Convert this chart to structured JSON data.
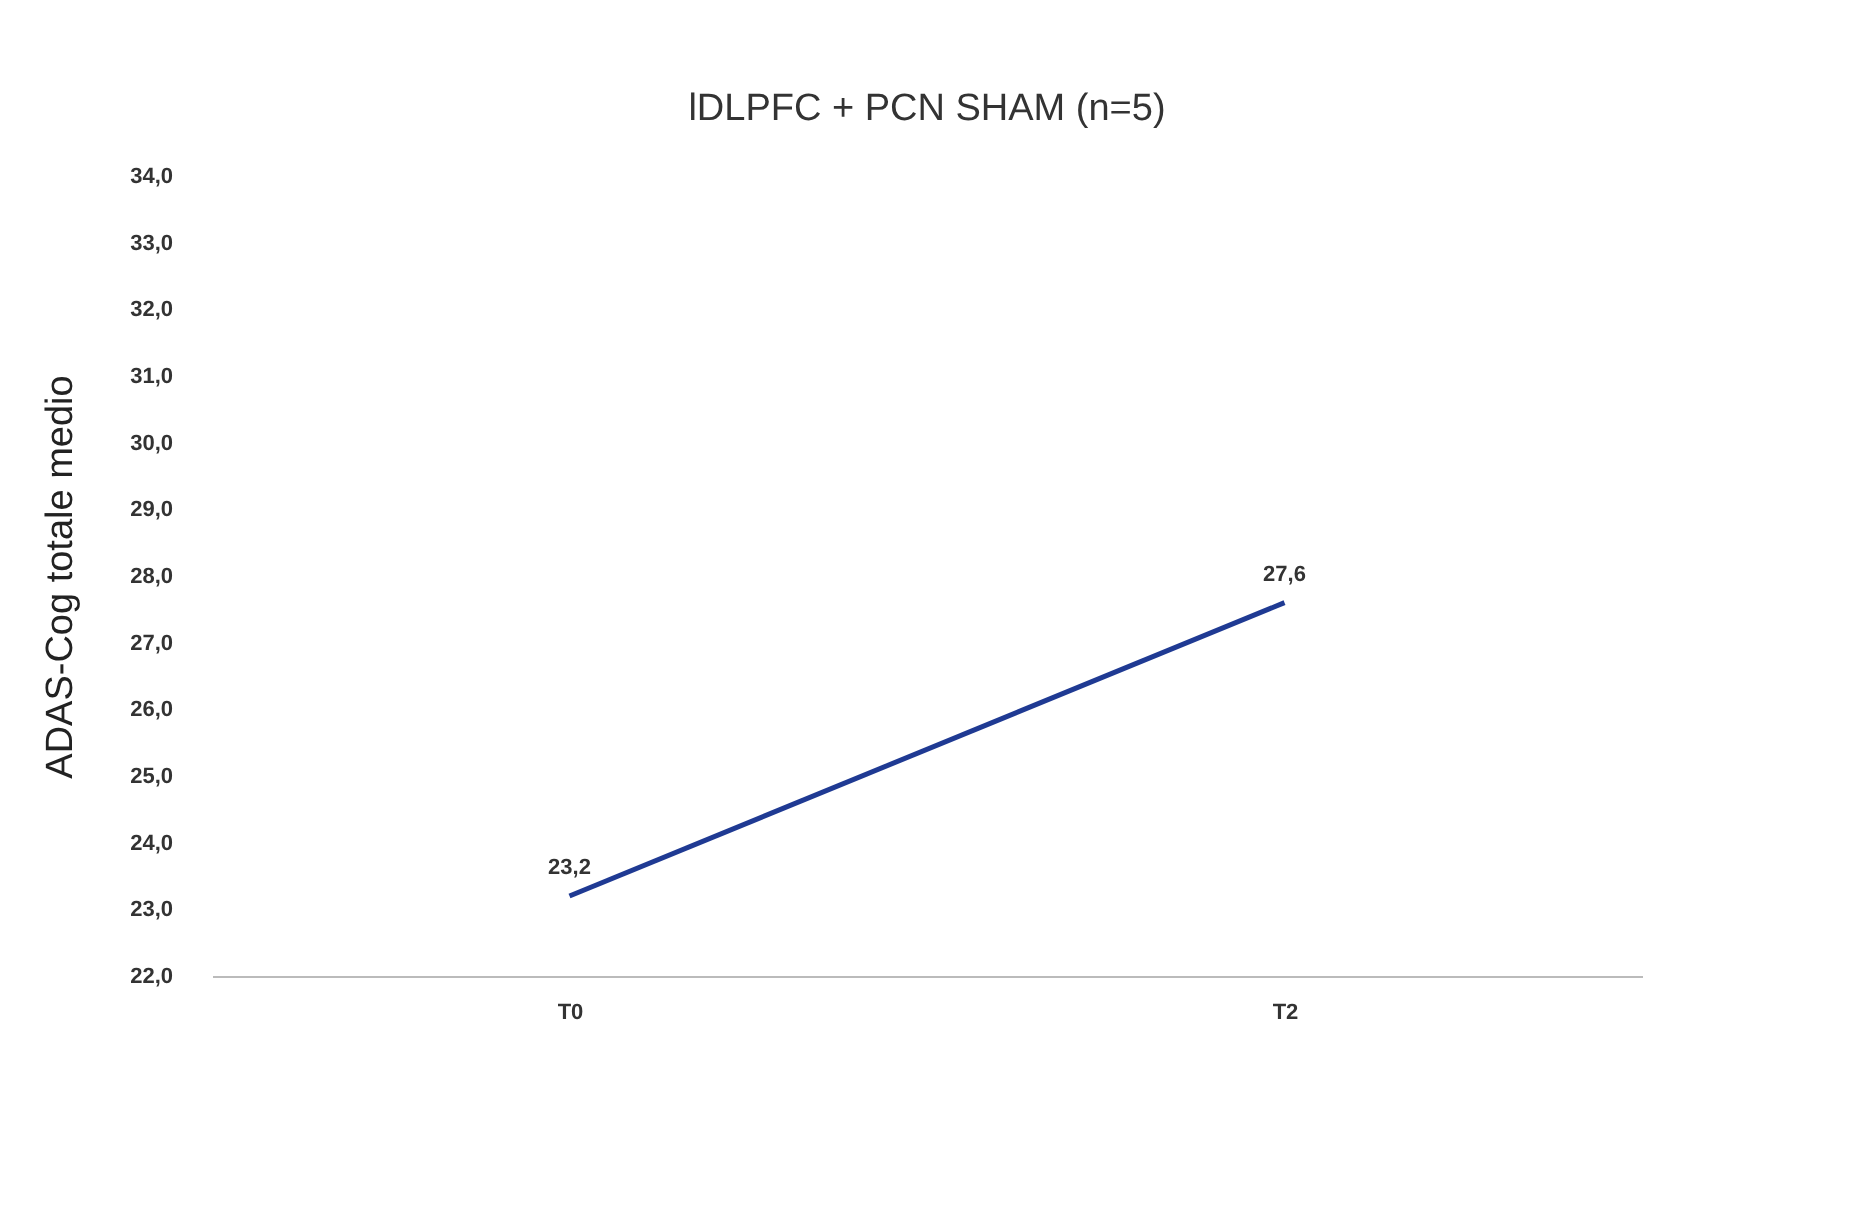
{
  "chart_data": {
    "type": "line",
    "title": "lDLPFC + PCN SHAM (n=5)",
    "ylabel": "ADAS-Cog totale medio",
    "categories": [
      "T0",
      "T2"
    ],
    "series": [
      {
        "color": "#1f3a93",
        "values": [
          23.2,
          27.6
        ],
        "value_labels": [
          "23,2",
          "27,6"
        ]
      }
    ],
    "ylim": [
      22,
      34
    ],
    "yticks": [
      {
        "value": 22,
        "label": "22,0"
      },
      {
        "value": 23,
        "label": "23,0"
      },
      {
        "value": 24,
        "label": "24,0"
      },
      {
        "value": 25,
        "label": "25,0"
      },
      {
        "value": 26,
        "label": "26,0"
      },
      {
        "value": 27,
        "label": "27,0"
      },
      {
        "value": 28,
        "label": "28,0"
      },
      {
        "value": 29,
        "label": "29,0"
      },
      {
        "value": 30,
        "label": "30,0"
      },
      {
        "value": 31,
        "label": "31,0"
      },
      {
        "value": 32,
        "label": "32,0"
      },
      {
        "value": 33,
        "label": "33,0"
      },
      {
        "value": 34,
        "label": "34,0"
      }
    ],
    "grid": false,
    "legend": false,
    "marker": "none",
    "line_style": "solid"
  }
}
